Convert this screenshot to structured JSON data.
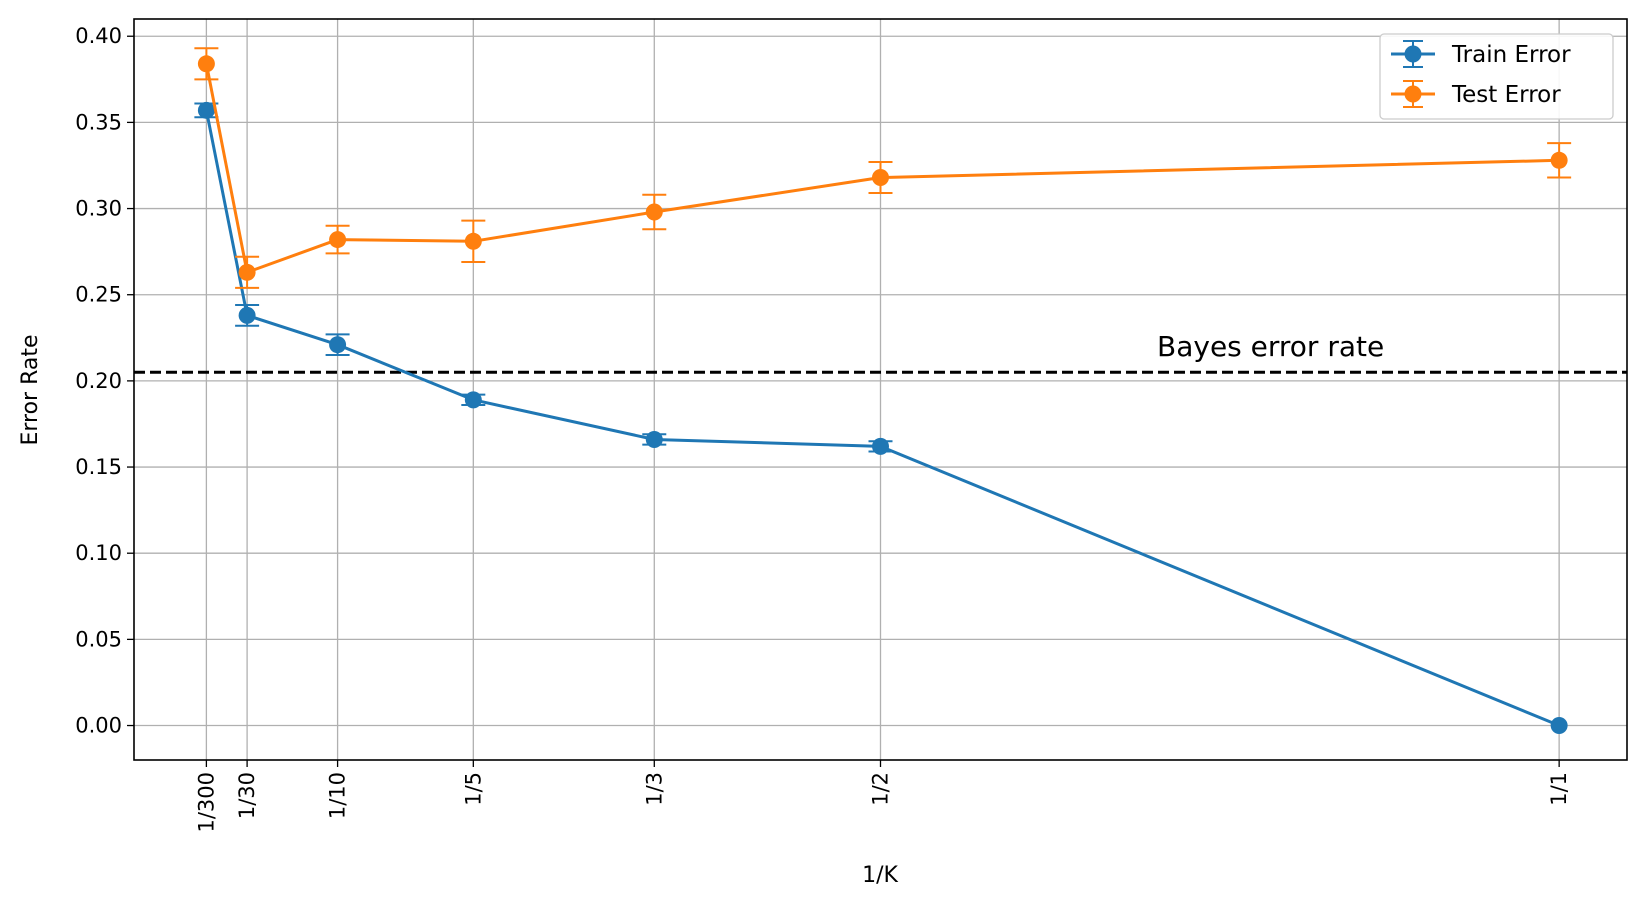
{
  "chart_data": {
    "type": "line",
    "xlabel": "1/K",
    "ylabel": "Error Rate",
    "x_tick_labels": [
      "1/300",
      "1/30",
      "1/10",
      "1/5",
      "1/3",
      "1/2",
      "1/1"
    ],
    "x": [
      0.003333,
      0.033333,
      0.1,
      0.2,
      0.333333,
      0.5,
      1.0
    ],
    "xlim": [
      -0.05,
      1.05
    ],
    "ylim": [
      -0.02,
      0.41
    ],
    "y_ticks": [
      "0.00",
      "0.05",
      "0.10",
      "0.15",
      "0.20",
      "0.25",
      "0.30",
      "0.35",
      "0.40"
    ],
    "grid": true,
    "legend_position": "top-right",
    "series": [
      {
        "name": "Train Error",
        "color": "#1f77b4",
        "values": [
          0.357,
          0.238,
          0.221,
          0.189,
          0.166,
          0.162,
          0.0
        ],
        "errors": [
          0.004,
          0.006,
          0.006,
          0.003,
          0.003,
          0.003,
          0.0
        ]
      },
      {
        "name": "Test Error",
        "color": "#ff7f0e",
        "values": [
          0.384,
          0.263,
          0.282,
          0.281,
          0.298,
          0.318,
          0.328
        ],
        "errors": [
          0.009,
          0.009,
          0.008,
          0.012,
          0.01,
          0.009,
          0.01
        ]
      }
    ],
    "reference_line": {
      "value": 0.205,
      "label": "Bayes error rate",
      "color": "#000000",
      "style": "dashed"
    }
  }
}
